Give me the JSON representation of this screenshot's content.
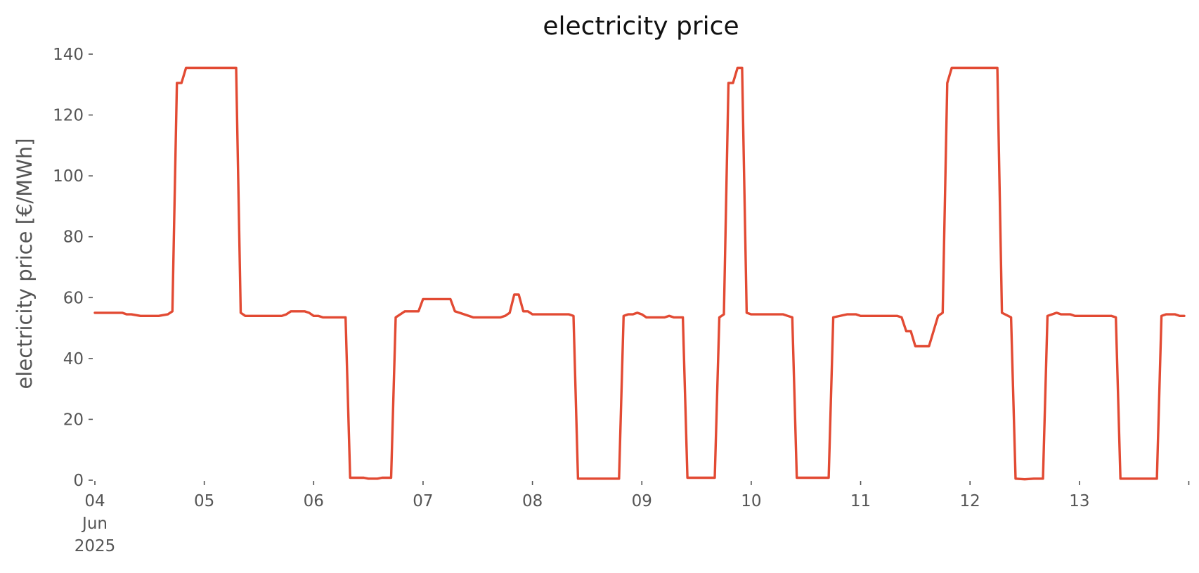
{
  "chart_data": {
    "type": "line",
    "title": "electricity price",
    "xlabel": "",
    "ylabel": "electricity price [€/MWh]",
    "x_unit": "days since 04 Jun 2025",
    "xlim": [
      "2025-06-04T00:00",
      "2025-06-13T23:00"
    ],
    "ylim": [
      0,
      140
    ],
    "yticks": [
      0,
      20,
      40,
      60,
      80,
      100,
      120,
      140
    ],
    "xticks": [
      {
        "x": "2025-06-04",
        "label": "04",
        "sublabel": "Jun",
        "subsublabel": "2025"
      },
      {
        "x": "2025-06-05",
        "label": "05"
      },
      {
        "x": "2025-06-06",
        "label": "06"
      },
      {
        "x": "2025-06-07",
        "label": "07"
      },
      {
        "x": "2025-06-08",
        "label": "08"
      },
      {
        "x": "2025-06-09",
        "label": "09"
      },
      {
        "x": "2025-06-10",
        "label": "10"
      },
      {
        "x": "2025-06-11",
        "label": "11"
      },
      {
        "x": "2025-06-12",
        "label": "12"
      },
      {
        "x": "2025-06-13",
        "label": "13"
      }
    ],
    "grid": false,
    "series": [
      {
        "color": "#e24a33",
        "points": [
          [
            "2025-06-04T00:00",
            55.0
          ],
          [
            "2025-06-04T06:00",
            55.0
          ],
          [
            "2025-06-04T07:00",
            54.5
          ],
          [
            "2025-06-04T08:00",
            54.5
          ],
          [
            "2025-06-04T10:00",
            54.0
          ],
          [
            "2025-06-04T14:00",
            54.0
          ],
          [
            "2025-06-04T16:00",
            54.5
          ],
          [
            "2025-06-04T17:00",
            55.5
          ],
          [
            "2025-06-04T18:00",
            130.5
          ],
          [
            "2025-06-04T19:00",
            130.5
          ],
          [
            "2025-06-04T20:00",
            135.5
          ],
          [
            "2025-06-05T07:00",
            135.5
          ],
          [
            "2025-06-05T08:00",
            55.0
          ],
          [
            "2025-06-05T09:00",
            54.0
          ],
          [
            "2025-06-05T17:00",
            54.0
          ],
          [
            "2025-06-05T18:00",
            54.5
          ],
          [
            "2025-06-05T19:00",
            55.5
          ],
          [
            "2025-06-05T22:00",
            55.5
          ],
          [
            "2025-06-05T23:00",
            55.0
          ],
          [
            "2025-06-06T00:00",
            54.0
          ],
          [
            "2025-06-06T01:00",
            54.0
          ],
          [
            "2025-06-06T02:00",
            53.5
          ],
          [
            "2025-06-06T07:00",
            53.5
          ],
          [
            "2025-06-06T08:00",
            0.8
          ],
          [
            "2025-06-06T11:00",
            0.8
          ],
          [
            "2025-06-06T12:00",
            0.5
          ],
          [
            "2025-06-06T14:00",
            0.5
          ],
          [
            "2025-06-06T15:00",
            0.8
          ],
          [
            "2025-06-06T17:00",
            0.8
          ],
          [
            "2025-06-06T18:00",
            53.5
          ],
          [
            "2025-06-06T20:00",
            55.5
          ],
          [
            "2025-06-06T23:00",
            55.5
          ],
          [
            "2025-06-07T00:00",
            59.5
          ],
          [
            "2025-06-07T06:00",
            59.5
          ],
          [
            "2025-06-07T07:00",
            55.5
          ],
          [
            "2025-06-07T08:00",
            55.0
          ],
          [
            "2025-06-07T11:00",
            53.5
          ],
          [
            "2025-06-07T17:00",
            53.5
          ],
          [
            "2025-06-07T18:00",
            54.0
          ],
          [
            "2025-06-07T19:00",
            55.0
          ],
          [
            "2025-06-07T20:00",
            61.0
          ],
          [
            "2025-06-07T21:00",
            61.0
          ],
          [
            "2025-06-07T22:00",
            55.5
          ],
          [
            "2025-06-07T23:00",
            55.5
          ],
          [
            "2025-06-08T00:00",
            54.5
          ],
          [
            "2025-06-08T08:00",
            54.5
          ],
          [
            "2025-06-08T09:00",
            54.0
          ],
          [
            "2025-06-08T10:00",
            0.5
          ],
          [
            "2025-06-08T19:00",
            0.5
          ],
          [
            "2025-06-08T20:00",
            54.0
          ],
          [
            "2025-06-08T21:00",
            54.5
          ],
          [
            "2025-06-08T22:00",
            54.5
          ],
          [
            "2025-06-08T23:00",
            55.0
          ],
          [
            "2025-06-09T00:00",
            54.5
          ],
          [
            "2025-06-09T01:00",
            53.5
          ],
          [
            "2025-06-09T05:00",
            53.5
          ],
          [
            "2025-06-09T06:00",
            54.0
          ],
          [
            "2025-06-09T07:00",
            53.5
          ],
          [
            "2025-06-09T09:00",
            53.5
          ],
          [
            "2025-06-09T10:00",
            0.8
          ],
          [
            "2025-06-09T16:00",
            0.8
          ],
          [
            "2025-06-09T17:00",
            53.5
          ],
          [
            "2025-06-09T18:00",
            54.5
          ],
          [
            "2025-06-09T19:00",
            130.5
          ],
          [
            "2025-06-09T20:00",
            130.5
          ],
          [
            "2025-06-09T21:00",
            135.5
          ],
          [
            "2025-06-09T22:00",
            135.5
          ],
          [
            "2025-06-09T23:00",
            55.0
          ],
          [
            "2025-06-10T00:00",
            54.5
          ],
          [
            "2025-06-10T01:00",
            54.5
          ],
          [
            "2025-06-10T07:00",
            54.5
          ],
          [
            "2025-06-10T08:00",
            54.0
          ],
          [
            "2025-06-10T09:00",
            53.5
          ],
          [
            "2025-06-10T10:00",
            0.8
          ],
          [
            "2025-06-10T17:00",
            0.8
          ],
          [
            "2025-06-10T18:00",
            53.5
          ],
          [
            "2025-06-10T21:00",
            54.5
          ],
          [
            "2025-06-10T23:00",
            54.5
          ],
          [
            "2025-06-11T00:00",
            54.0
          ],
          [
            "2025-06-11T08:00",
            54.0
          ],
          [
            "2025-06-11T09:00",
            53.5
          ],
          [
            "2025-06-11T10:00",
            49.0
          ],
          [
            "2025-06-11T11:00",
            49.0
          ],
          [
            "2025-06-11T12:00",
            44.0
          ],
          [
            "2025-06-11T15:00",
            44.0
          ],
          [
            "2025-06-11T17:00",
            54.0
          ],
          [
            "2025-06-11T18:00",
            55.0
          ],
          [
            "2025-06-11T19:00",
            130.5
          ],
          [
            "2025-06-11T20:00",
            135.5
          ],
          [
            "2025-06-12T06:00",
            135.5
          ],
          [
            "2025-06-12T07:00",
            55.0
          ],
          [
            "2025-06-12T09:00",
            53.5
          ],
          [
            "2025-06-12T10:00",
            0.5
          ],
          [
            "2025-06-12T12:00",
            0.3
          ],
          [
            "2025-06-12T14:00",
            0.5
          ],
          [
            "2025-06-12T16:00",
            0.5
          ],
          [
            "2025-06-12T17:00",
            54.0
          ],
          [
            "2025-06-12T18:00",
            54.5
          ],
          [
            "2025-06-12T19:00",
            55.0
          ],
          [
            "2025-06-12T20:00",
            54.5
          ],
          [
            "2025-06-12T22:00",
            54.5
          ],
          [
            "2025-06-12T23:00",
            54.0
          ],
          [
            "2025-06-13T07:00",
            54.0
          ],
          [
            "2025-06-13T08:00",
            53.5
          ],
          [
            "2025-06-13T09:00",
            0.5
          ],
          [
            "2025-06-13T17:00",
            0.5
          ],
          [
            "2025-06-13T18:00",
            54.0
          ],
          [
            "2025-06-13T19:00",
            54.5
          ],
          [
            "2025-06-13T21:00",
            54.5
          ],
          [
            "2025-06-13T22:00",
            54.0
          ],
          [
            "2025-06-13T23:00",
            54.0
          ]
        ]
      }
    ]
  }
}
